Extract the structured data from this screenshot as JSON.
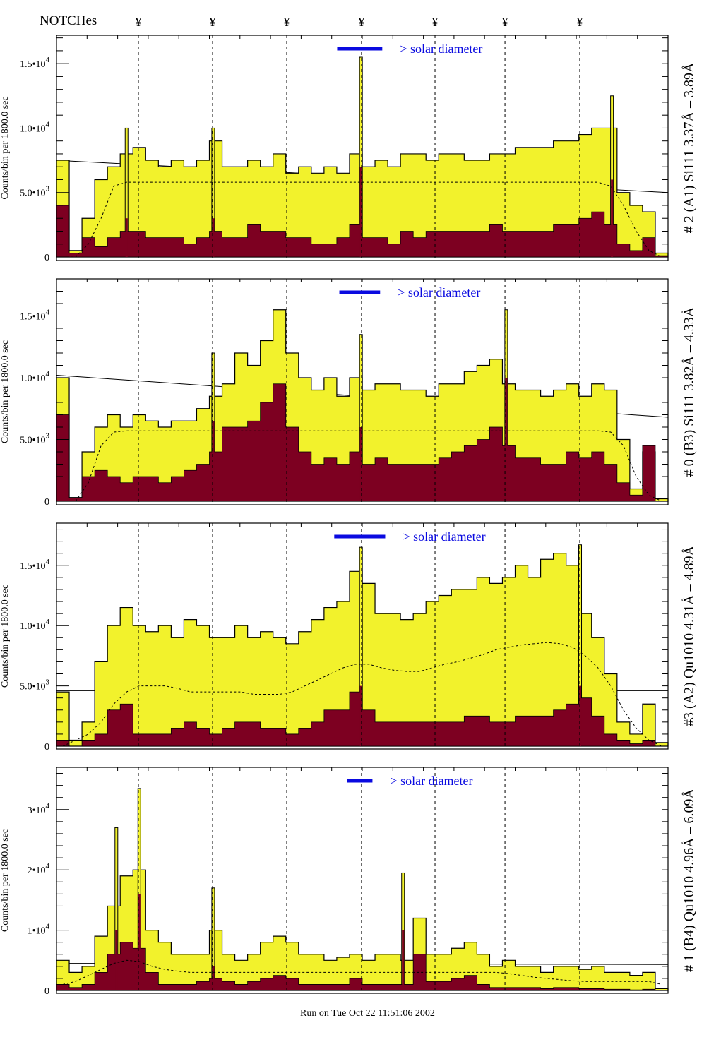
{
  "header": {
    "title": "NOTCHes",
    "notch_symbol": "¥"
  },
  "footer": {
    "run_info": "Run on Tue Oct 22 11:51:06 2002"
  },
  "colors": {
    "total_fill": "#f2f22c",
    "detail_fill": "#7d0021",
    "solar_bar": "#0a0ae0",
    "legend_text": "#0a0ae0"
  },
  "chart_data": {
    "type": "bar",
    "x_bins": 48,
    "notches": [
      6.43,
      12.25,
      18.07,
      23.94,
      29.71,
      35.2,
      41.07
    ],
    "ylabel": "Counts/bin per   1800.0 sec",
    "legend_label": "> solar diameter",
    "panels": [
      {
        "label": "# 2 (A1) Si111  3.37Å – 3.89Å",
        "ylim": [
          0,
          17.2
        ],
        "unit": 1000,
        "ticks": [
          {
            "v": 0,
            "mant": "0",
            "exp": ""
          },
          {
            "v": 5,
            "mant": "5.0•10",
            "exp": "3"
          },
          {
            "v": 10,
            "mant": "1.0•10",
            "exp": "4"
          },
          {
            "v": 15,
            "mant": "1.5•10",
            "exp": "4"
          }
        ],
        "solar": [
          22.03,
          25.57
        ],
        "total": [
          7.5,
          0.5,
          3,
          6,
          7,
          8,
          8.5,
          7.5,
          7,
          7.5,
          7,
          7.5,
          9,
          7,
          7,
          7.5,
          7,
          8,
          6.5,
          7,
          6.5,
          7,
          6.5,
          8,
          7,
          7.5,
          7,
          8,
          8,
          7.5,
          8,
          8,
          7.5,
          7.5,
          8,
          8,
          8.5,
          8.5,
          8.5,
          9,
          9,
          9.5,
          10,
          10,
          5,
          4,
          3.5,
          0.3
        ],
        "detail": [
          4,
          0.3,
          1.5,
          0.8,
          1.5,
          2,
          2,
          1.5,
          1.5,
          1.5,
          1,
          1.5,
          2,
          1.5,
          1.5,
          2.5,
          2,
          2,
          1.5,
          1.5,
          1,
          1,
          1.5,
          2.5,
          1.5,
          1.5,
          1,
          2,
          1.5,
          2,
          2,
          2,
          2,
          2,
          2.5,
          2,
          2,
          2,
          2,
          2.5,
          2.5,
          3,
          3.5,
          2.5,
          1,
          0.5,
          1.5,
          0.1
        ],
        "spikes": [
          {
            "x": 23.9,
            "total": 15.5,
            "detail": 7
          },
          {
            "x": 12.3,
            "total": 10,
            "detail": 3
          },
          {
            "x": 43.6,
            "total": 12.5,
            "detail": 6
          },
          {
            "x": 5.5,
            "total": 10,
            "detail": 3
          }
        ],
        "model": [
          0,
          0,
          1,
          3,
          5.5,
          5.8,
          5.8,
          5.8,
          5.8,
          5.8,
          5.8,
          5.8,
          5.8,
          5.8,
          5.8,
          5.8,
          5.8,
          5.8,
          5.8,
          5.8,
          5.8,
          5.8,
          5.8,
          5.8,
          5.8,
          5.8,
          5.8,
          5.8,
          5.8,
          5.8,
          5.8,
          5.8,
          5.8,
          5.8,
          5.8,
          5.8,
          5.8,
          5.8,
          5.8,
          5.8,
          5.8,
          5.8,
          5.8,
          5.5,
          4,
          2,
          0.5,
          0
        ],
        "trend": [
          7.5,
          5.0
        ]
      },
      {
        "label": "# 0 (B3) Si111  3.82Å – 4.33Å",
        "ylim": [
          0,
          18
        ],
        "unit": 1000,
        "ticks": [
          {
            "v": 0,
            "mant": "0",
            "exp": ""
          },
          {
            "v": 5,
            "mant": "5.0•10",
            "exp": "3"
          },
          {
            "v": 10,
            "mant": "1.0•10",
            "exp": "4"
          },
          {
            "v": 15,
            "mant": "1.5•10",
            "exp": "4"
          }
        ],
        "solar": [
          22.2,
          25.4
        ],
        "total": [
          10,
          0.3,
          4,
          6,
          7,
          6,
          7,
          6.5,
          6,
          6.5,
          6.5,
          7.5,
          8.5,
          9.5,
          12,
          11,
          13,
          15.5,
          12,
          10,
          9,
          10,
          8.5,
          10,
          9,
          9.5,
          9.5,
          9,
          9,
          8.5,
          9.5,
          9.5,
          10.5,
          11,
          11.5,
          9.5,
          9,
          9,
          8.5,
          9,
          9.5,
          8.5,
          9.5,
          9,
          5,
          1,
          4,
          0.2
        ],
        "detail": [
          7,
          0.3,
          2,
          2.5,
          2,
          1.5,
          2,
          2,
          1.5,
          2,
          2.5,
          3,
          4,
          6,
          6,
          6.5,
          8,
          9.5,
          6,
          4,
          3,
          3.5,
          3,
          4,
          3,
          3.5,
          3,
          3,
          3,
          3,
          3.5,
          4,
          4.5,
          5,
          6,
          4.5,
          3.5,
          3.5,
          3,
          3,
          4,
          3.5,
          4,
          3,
          1.5,
          0.5,
          4.5,
          0
        ],
        "spikes": [
          {
            "x": 35.3,
            "total": 15.5,
            "detail": 10
          },
          {
            "x": 23.9,
            "total": 13.5,
            "detail": 6
          },
          {
            "x": 12.3,
            "total": 12,
            "detail": 6.5
          }
        ],
        "model": [
          0,
          0,
          1.5,
          4.5,
          5.6,
          5.7,
          5.7,
          5.7,
          5.7,
          5.7,
          5.7,
          5.7,
          5.7,
          5.7,
          5.7,
          5.7,
          5.7,
          5.7,
          5.7,
          5.7,
          5.7,
          5.7,
          5.7,
          5.7,
          5.7,
          5.7,
          5.7,
          5.7,
          5.7,
          5.7,
          5.7,
          5.7,
          5.7,
          5.7,
          5.7,
          5.7,
          5.7,
          5.7,
          5.7,
          5.7,
          5.7,
          5.7,
          5.7,
          5.6,
          4.5,
          2,
          0.5,
          0
        ],
        "trend": [
          10.2,
          6.8
        ]
      },
      {
        "label": "#3 (A2) Qu1010  4.31Å – 4.89Å",
        "ylim": [
          0,
          18.5
        ],
        "unit": 1000,
        "ticks": [
          {
            "v": 0,
            "mant": "0",
            "exp": ""
          },
          {
            "v": 5,
            "mant": "5.0•10",
            "exp": "3"
          },
          {
            "v": 10,
            "mant": "1.0•10",
            "exp": "4"
          },
          {
            "v": 15,
            "mant": "1.5•10",
            "exp": "4"
          }
        ],
        "solar": [
          21.8,
          25.8
        ],
        "total": [
          4.5,
          0.5,
          2,
          7,
          10,
          11.5,
          10,
          9.5,
          10,
          9,
          10.5,
          10,
          9,
          9,
          10,
          9,
          9.5,
          9,
          8.5,
          9.5,
          10.5,
          11.5,
          12,
          14.5,
          13.5,
          11,
          11,
          10.5,
          11,
          12,
          12.5,
          13,
          13,
          14,
          13.5,
          14,
          15,
          14,
          15.5,
          16,
          15,
          11,
          9,
          6,
          2,
          1,
          3.5,
          0.3
        ],
        "detail": [
          0.5,
          0,
          0.5,
          1,
          3,
          3.5,
          1,
          1,
          1,
          1.5,
          2,
          1.5,
          1,
          1.5,
          2,
          2,
          1.5,
          1.5,
          1,
          1.5,
          2,
          3,
          3,
          4.5,
          3,
          2,
          2,
          2,
          2,
          2,
          2,
          2,
          2.5,
          2.5,
          2,
          2,
          2.5,
          2.5,
          2.5,
          3,
          3.5,
          4,
          2.5,
          1,
          0.5,
          0.2,
          0.5,
          0
        ],
        "spikes": [
          {
            "x": 41.1,
            "total": 16.7,
            "detail": 5
          },
          {
            "x": 23.9,
            "total": 16.5,
            "detail": 5
          }
        ],
        "model": [
          0,
          0.5,
          1,
          2,
          3.5,
          4.5,
          5,
          5,
          5,
          4.8,
          4.5,
          4.5,
          4.5,
          4.5,
          4.5,
          4.3,
          4.3,
          4.3,
          4.5,
          5,
          5.5,
          6,
          6.5,
          6.8,
          6.8,
          6.5,
          6.3,
          6.2,
          6.2,
          6.5,
          6.8,
          7,
          7.3,
          7.6,
          8,
          8.2,
          8.4,
          8.5,
          8.6,
          8.5,
          8.2,
          7.5,
          6.5,
          5,
          3,
          1.5,
          0.5,
          0
        ],
        "trend": [
          4.6,
          4.6
        ]
      },
      {
        "label": "# 1 (B4) Qu1010 4.96Å – 6.09Å",
        "ylim": [
          0,
          37
        ],
        "unit": 1000,
        "ticks": [
          {
            "v": 0,
            "mant": "0",
            "exp": ""
          },
          {
            "v": 10,
            "mant": "1•10",
            "exp": "4"
          },
          {
            "v": 20,
            "mant": "2•10",
            "exp": "4"
          },
          {
            "v": 30,
            "mant": "3•10",
            "exp": "4"
          }
        ],
        "solar": [
          22.8,
          24.8
        ],
        "total": [
          5,
          3,
          4,
          9,
          14,
          19,
          20,
          10,
          8,
          6,
          6,
          6,
          10,
          6,
          5,
          6,
          8,
          9,
          8,
          6,
          6,
          5,
          5.5,
          6,
          5,
          6,
          6,
          5,
          12,
          6,
          6,
          7,
          8,
          6,
          4,
          5,
          4,
          4,
          3,
          4,
          4,
          3.5,
          4,
          3,
          3,
          2.5,
          3,
          0.3
        ],
        "detail": [
          1,
          0.5,
          1,
          3,
          6,
          8,
          7,
          3,
          1,
          1,
          1,
          1.5,
          2,
          1.5,
          1,
          1.5,
          2,
          2.5,
          2,
          1,
          1,
          1,
          1,
          2,
          1,
          1,
          1,
          1,
          6,
          1.5,
          1.5,
          2,
          2.5,
          1,
          0.5,
          0.5,
          0.5,
          0.5,
          0.3,
          0.5,
          0.5,
          0.3,
          0.3,
          0.2,
          0.2,
          0.1,
          0.2,
          0
        ],
        "spikes": [
          {
            "x": 4.7,
            "total": 27,
            "detail": 10
          },
          {
            "x": 6.5,
            "total": 33.5,
            "detail": 16
          },
          {
            "x": 12.3,
            "total": 17,
            "detail": 4
          },
          {
            "x": 27.2,
            "total": 19.5,
            "detail": 10
          }
        ],
        "model": [
          1,
          1.5,
          2.5,
          3.5,
          4.5,
          5,
          4.8,
          4,
          3.5,
          3.2,
          3,
          3,
          3,
          3,
          3,
          3,
          3,
          3,
          3,
          3,
          3,
          3,
          3,
          3,
          3,
          3,
          3,
          3,
          3,
          3,
          3,
          3,
          3,
          3,
          3,
          2.8,
          2.5,
          2.2,
          2,
          1.8,
          1.6,
          1.5,
          1.5,
          1.5,
          1.5,
          1.5,
          1.5,
          1
        ],
        "trend": [
          4.5,
          4.3
        ]
      }
    ]
  }
}
